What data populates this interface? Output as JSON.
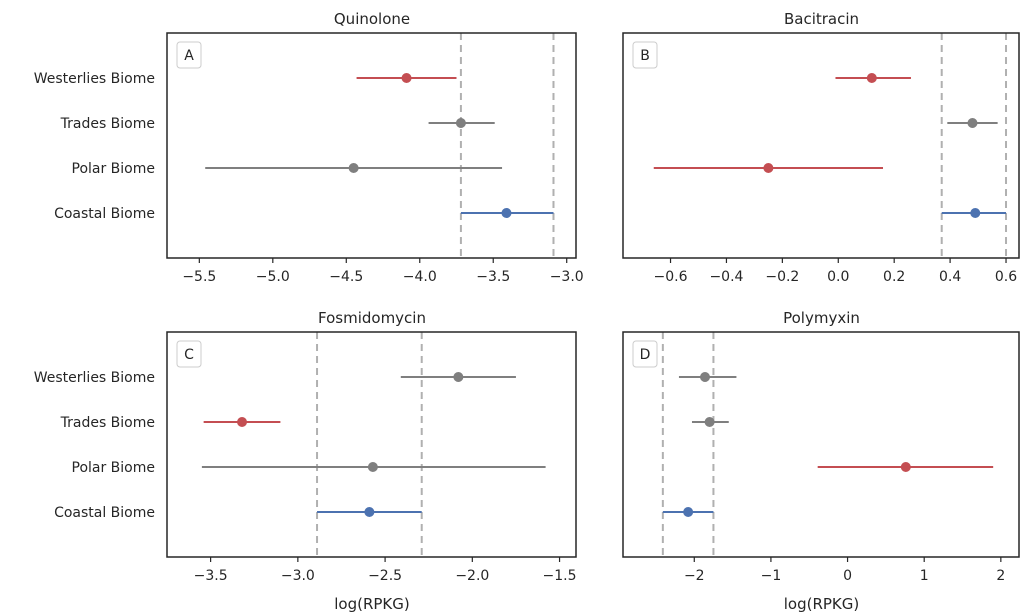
{
  "chart_data": [
    {
      "type": "errorbar",
      "panel_label": "A",
      "title": "Quinolone",
      "xlabel": "",
      "xlim": [
        -5.72,
        -2.93
      ],
      "xticks": [
        -5.5,
        -5.0,
        -4.5,
        -4.0,
        -3.5,
        -3.0
      ],
      "xtick_labels": [
        "−5.5",
        "−5.0",
        "−4.5",
        "−4.0",
        "−3.5",
        "−3.0"
      ],
      "categories": [
        "Westerlies Biome",
        "Trades Biome",
        "Polar Biome",
        "Coastal Biome"
      ],
      "points": [
        {
          "category": "Westerlies Biome",
          "mean": -4.09,
          "low": -4.43,
          "high": -3.75,
          "color": "#c44e52"
        },
        {
          "category": "Trades Biome",
          "mean": -3.72,
          "low": -3.94,
          "high": -3.49,
          "color": "#7f7f7f"
        },
        {
          "category": "Polar Biome",
          "mean": -4.45,
          "low": -5.46,
          "high": -3.44,
          "color": "#7f7f7f"
        },
        {
          "category": "Coastal Biome",
          "mean": -3.41,
          "low": -3.72,
          "high": -3.09,
          "color": "#4c72b0"
        }
      ],
      "ref_lines": [
        -3.72,
        -3.09
      ]
    },
    {
      "type": "errorbar",
      "panel_label": "B",
      "title": "Bacitracin",
      "xlabel": "",
      "xlim": [
        -0.77,
        0.65
      ],
      "xticks": [
        -0.6,
        -0.4,
        -0.2,
        0.0,
        0.2,
        0.4,
        0.6
      ],
      "xtick_labels": [
        "−0.6",
        "−0.4",
        "−0.2",
        "0.0",
        "0.2",
        "0.4",
        "0.6"
      ],
      "categories": [
        "Westerlies Biome",
        "Trades Biome",
        "Polar Biome",
        "Coastal Biome"
      ],
      "points": [
        {
          "category": "Westerlies Biome",
          "mean": 0.12,
          "low": -0.01,
          "high": 0.26,
          "color": "#c44e52"
        },
        {
          "category": "Trades Biome",
          "mean": 0.48,
          "low": 0.39,
          "high": 0.57,
          "color": "#7f7f7f"
        },
        {
          "category": "Polar Biome",
          "mean": -0.25,
          "low": -0.66,
          "high": 0.16,
          "color": "#c44e52"
        },
        {
          "category": "Coastal Biome",
          "mean": 0.49,
          "low": 0.37,
          "high": 0.6,
          "color": "#4c72b0"
        }
      ],
      "ref_lines": [
        0.37,
        0.6
      ]
    },
    {
      "type": "errorbar",
      "panel_label": "C",
      "title": "Fosmidomycin",
      "xlabel": "log(RPKG)",
      "xlim": [
        -3.75,
        -1.4
      ],
      "xticks": [
        -3.5,
        -3.0,
        -2.5,
        -2.0,
        -1.5
      ],
      "xtick_labels": [
        "−3.5",
        "−3.0",
        "−2.5",
        "−2.0",
        "−1.5"
      ],
      "categories": [
        "Westerlies Biome",
        "Trades Biome",
        "Polar Biome",
        "Coastal Biome"
      ],
      "points": [
        {
          "category": "Westerlies Biome",
          "mean": -2.08,
          "low": -2.41,
          "high": -1.75,
          "color": "#7f7f7f"
        },
        {
          "category": "Trades Biome",
          "mean": -3.32,
          "low": -3.54,
          "high": -3.1,
          "color": "#c44e52"
        },
        {
          "category": "Polar Biome",
          "mean": -2.57,
          "low": -3.55,
          "high": -1.58,
          "color": "#7f7f7f"
        },
        {
          "category": "Coastal Biome",
          "mean": -2.59,
          "low": -2.89,
          "high": -2.29,
          "color": "#4c72b0"
        }
      ],
      "ref_lines": [
        -2.89,
        -2.29
      ]
    },
    {
      "type": "errorbar",
      "panel_label": "D",
      "title": "Polymyxin",
      "xlabel": "log(RPKG)",
      "xlim": [
        -2.93,
        2.25
      ],
      "xticks": [
        -2,
        -1,
        0,
        1,
        2
      ],
      "xtick_labels": [
        "−2",
        "−1",
        "0",
        "1",
        "2"
      ],
      "categories": [
        "Westerlies Biome",
        "Trades Biome",
        "Polar Biome",
        "Coastal Biome"
      ],
      "points": [
        {
          "category": "Westerlies Biome",
          "mean": -1.86,
          "low": -2.2,
          "high": -1.45,
          "color": "#7f7f7f"
        },
        {
          "category": "Trades Biome",
          "mean": -1.8,
          "low": -2.03,
          "high": -1.55,
          "color": "#7f7f7f"
        },
        {
          "category": "Polar Biome",
          "mean": 0.76,
          "low": -0.39,
          "high": 1.9,
          "color": "#c44e52"
        },
        {
          "category": "Coastal Biome",
          "mean": -2.08,
          "low": -2.41,
          "high": -1.75,
          "color": "#4c72b0"
        }
      ],
      "ref_lines": [
        -2.41,
        -1.75
      ]
    }
  ]
}
